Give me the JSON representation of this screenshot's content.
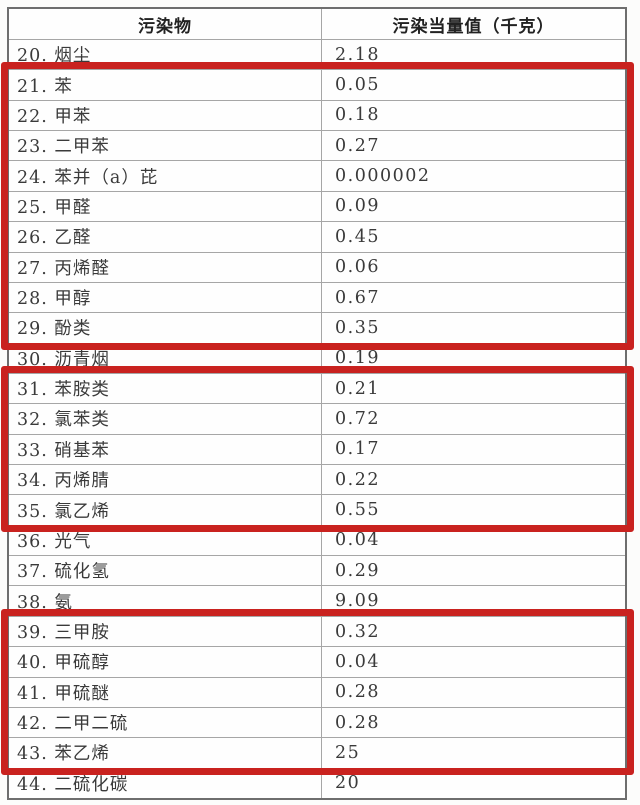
{
  "page_background": "#fcfcfb",
  "table": {
    "columns": [
      "污染物",
      "污染当量值（千克）"
    ],
    "rows": [
      {
        "label": "20. 烟尘",
        "value": "2.18"
      },
      {
        "label": "21. 苯",
        "value": "0.05"
      },
      {
        "label": "22. 甲苯",
        "value": "0.18"
      },
      {
        "label": "23. 二甲苯",
        "value": "0.27"
      },
      {
        "label": "24. 苯并（a）芘",
        "value": "0.000002"
      },
      {
        "label": "25. 甲醛",
        "value": "0.09"
      },
      {
        "label": "26. 乙醛",
        "value": "0.45"
      },
      {
        "label": "27. 丙烯醛",
        "value": "0.06"
      },
      {
        "label": "28. 甲醇",
        "value": "0.67"
      },
      {
        "label": "29. 酚类",
        "value": "0.35"
      },
      {
        "label": "30. 沥青烟",
        "value": "0.19"
      },
      {
        "label": "31. 苯胺类",
        "value": "0.21"
      },
      {
        "label": "32. 氯苯类",
        "value": "0.72"
      },
      {
        "label": "33. 硝基苯",
        "value": "0.17"
      },
      {
        "label": "34. 丙烯腈",
        "value": "0.22"
      },
      {
        "label": "35. 氯乙烯",
        "value": "0.55"
      },
      {
        "label": "36. 光气",
        "value": "0.04"
      },
      {
        "label": "37. 硫化氢",
        "value": "0.29"
      },
      {
        "label": "38. 氨",
        "value": "9.09"
      },
      {
        "label": "39. 三甲胺",
        "value": "0.32"
      },
      {
        "label": "40. 甲硫醇",
        "value": "0.04"
      },
      {
        "label": "41. 甲硫醚",
        "value": "0.28"
      },
      {
        "label": "42. 二甲二硫",
        "value": "0.28"
      },
      {
        "label": "43. 苯乙烯",
        "value": "25"
      },
      {
        "label": "44. 二硫化碳",
        "value": "20"
      }
    ]
  },
  "highlights": {
    "color": "#c9221f",
    "groups": [
      {
        "from_row": 21,
        "to_row": 29
      },
      {
        "from_row": 31,
        "to_row": 35
      },
      {
        "from_row": 39,
        "to_row": 43
      }
    ]
  }
}
